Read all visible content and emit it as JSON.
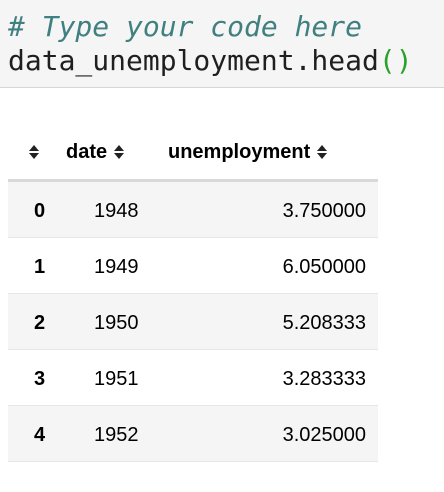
{
  "code_cell": {
    "comment": "# Type your code here",
    "call_text": "data_unemployment.head",
    "parens": "()"
  },
  "table": {
    "columns": [
      "",
      "date",
      "unemployment"
    ],
    "rows": [
      {
        "index": "0",
        "date": "1948",
        "unemployment": "3.750000"
      },
      {
        "index": "1",
        "date": "1949",
        "unemployment": "6.050000"
      },
      {
        "index": "2",
        "date": "1950",
        "unemployment": "5.208333"
      },
      {
        "index": "3",
        "date": "1951",
        "unemployment": "3.283333"
      },
      {
        "index": "4",
        "date": "1952",
        "unemployment": "3.025000"
      }
    ]
  }
}
